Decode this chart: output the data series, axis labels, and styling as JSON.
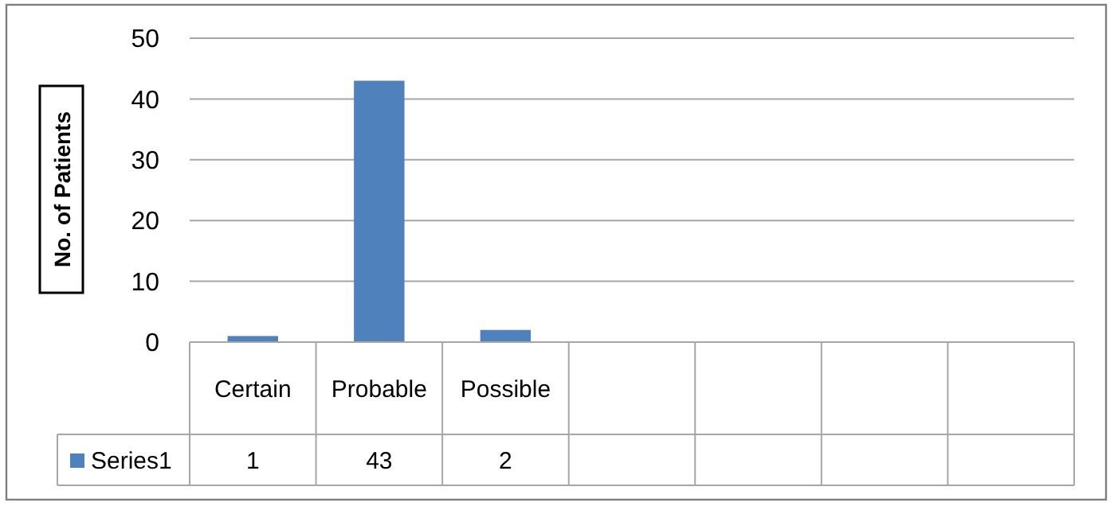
{
  "chart_data": {
    "type": "bar",
    "ylabel": "No. of Patients",
    "categories": [
      "Certain",
      "Probable",
      "Possible",
      null,
      null,
      null,
      null
    ],
    "series": [
      {
        "name": "Series1",
        "color": "#4f81bd",
        "values": [
          1,
          43,
          2,
          null,
          null,
          null,
          null
        ]
      }
    ],
    "ylim": [
      0,
      50
    ],
    "yticks": [
      0,
      10,
      20,
      30,
      40,
      50
    ],
    "grid": "y",
    "data_labels": true
  }
}
